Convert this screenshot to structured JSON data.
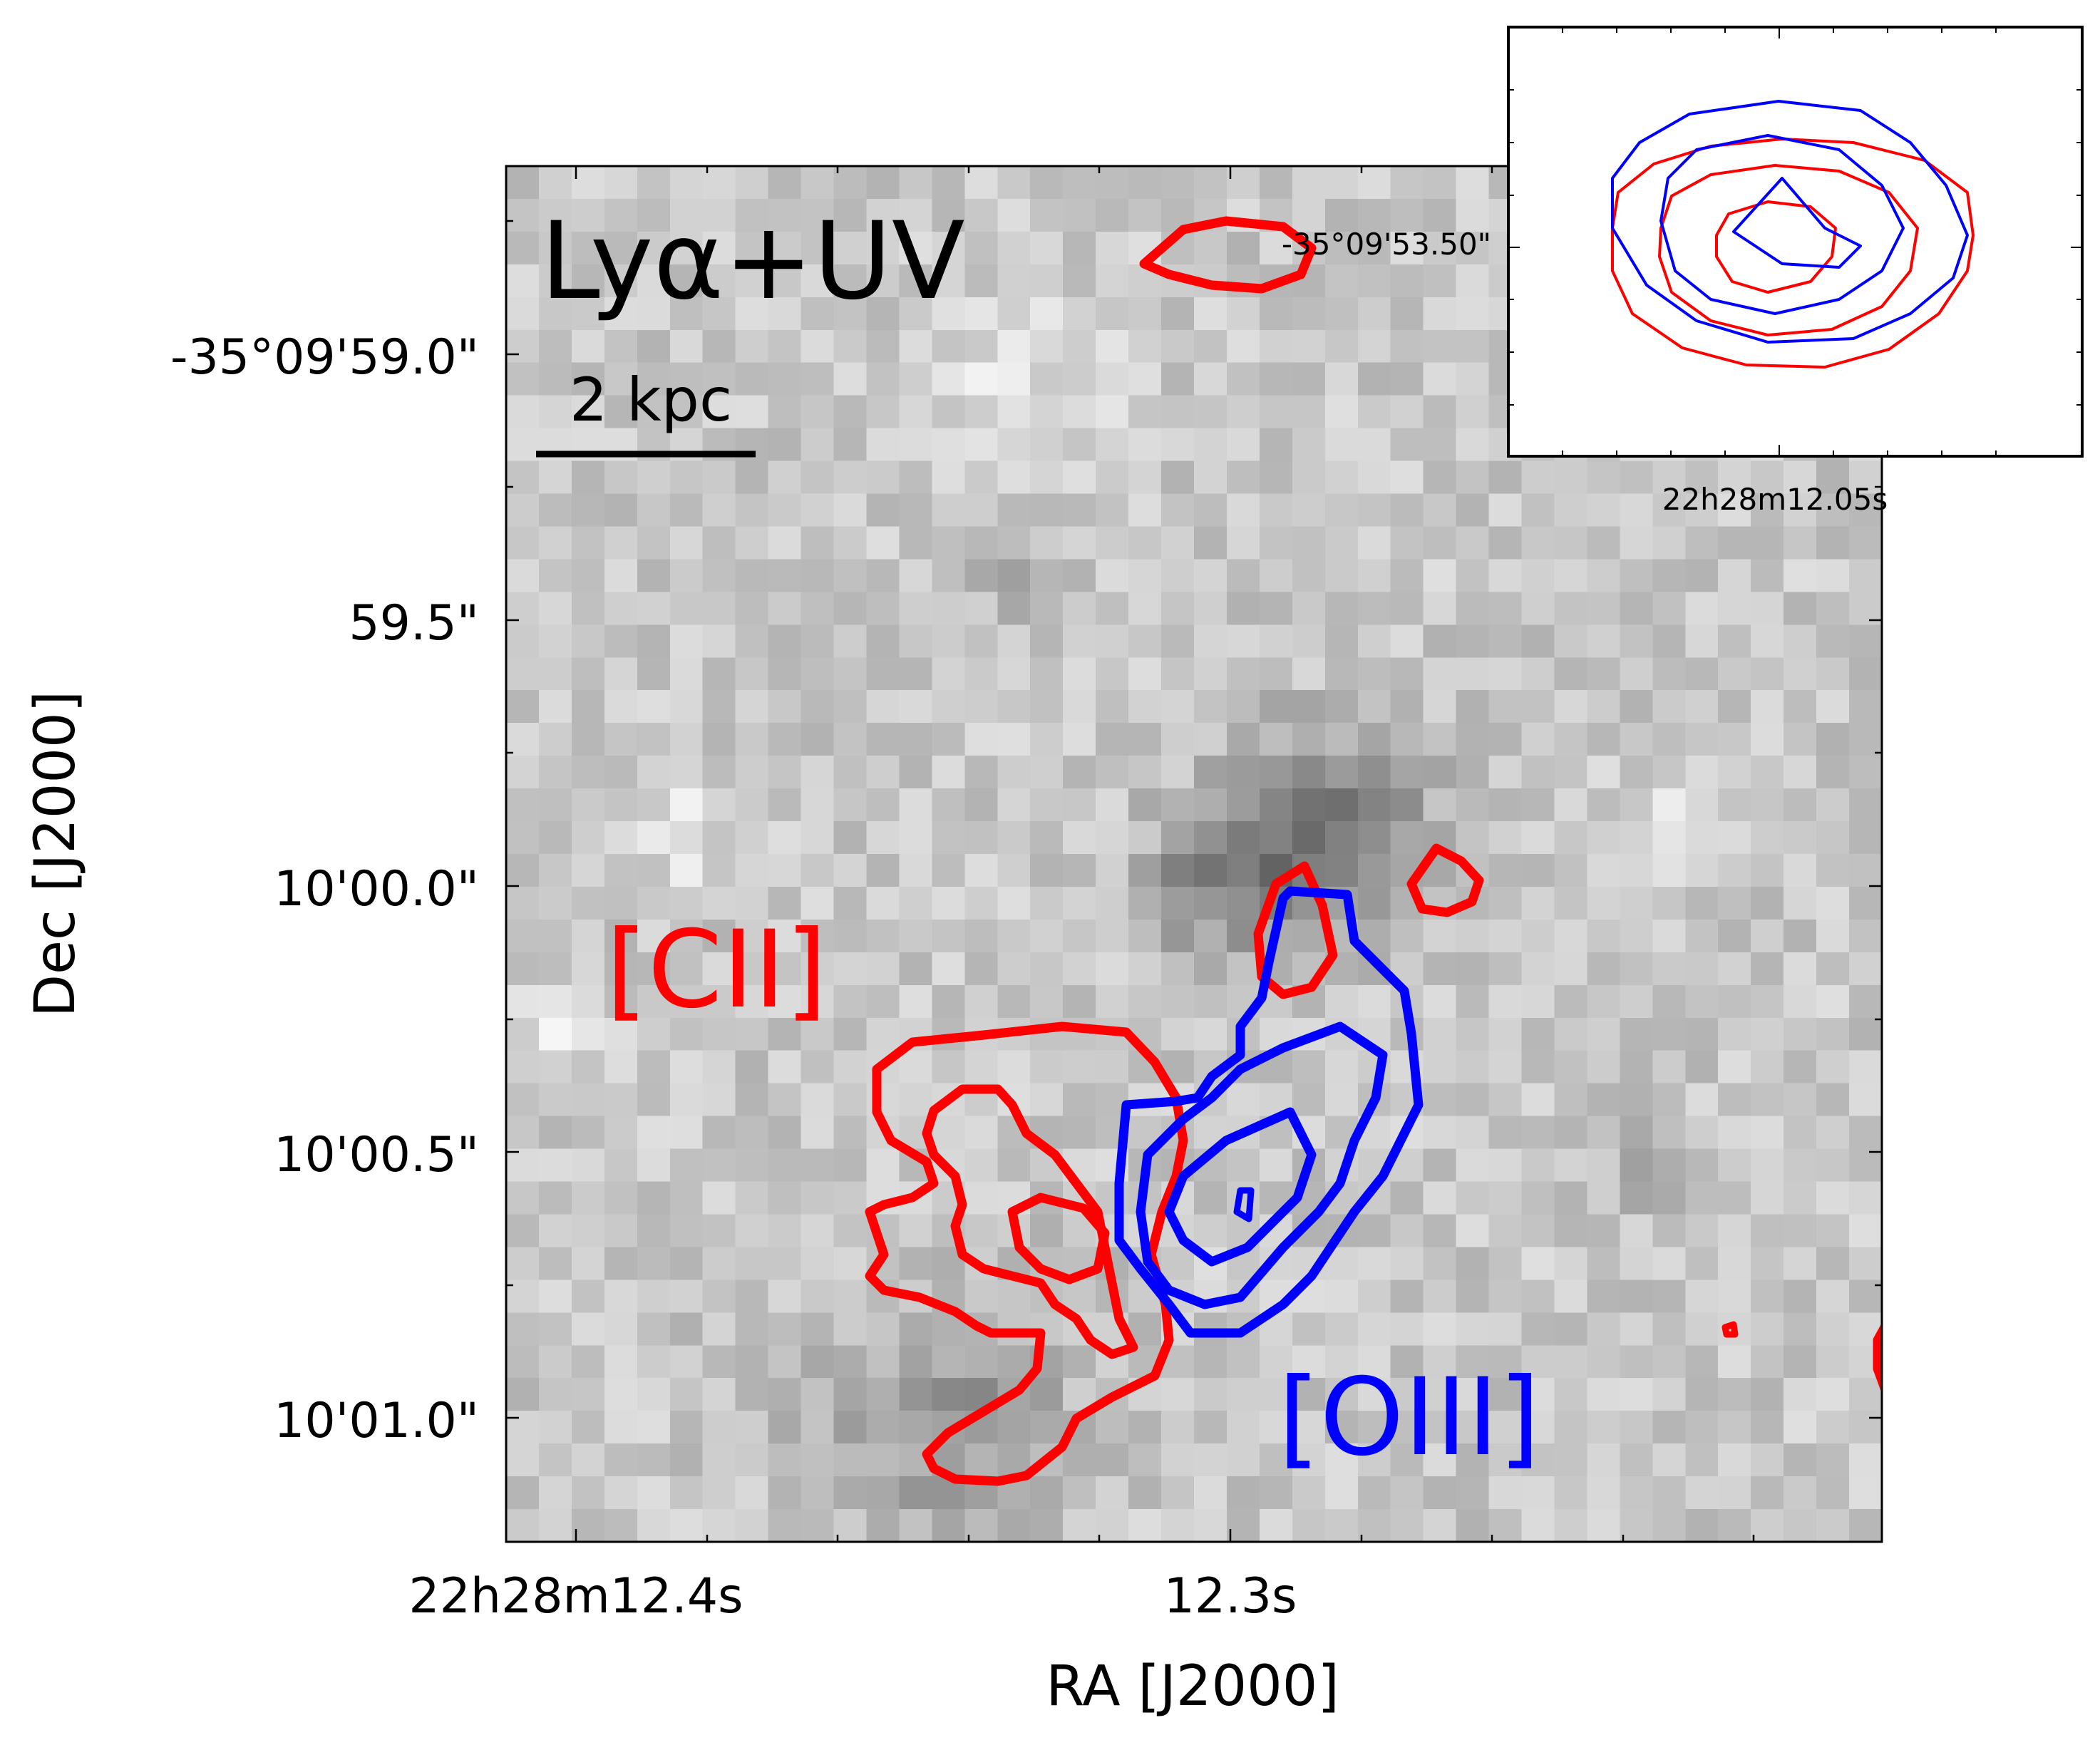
{
  "chart_data": {
    "type": "heatmap",
    "panel_label": "Lyα+UV",
    "scalebar_label": "2 kpc",
    "xlabel": "RA [J2000]",
    "ylabel": "Dec [J2000]",
    "x_ticks": [
      "22h28m12.4s",
      "12.3s"
    ],
    "y_ticks": [
      "-35°09'59.0\"",
      "59.5\"",
      "10'00.0\"",
      "10'00.5\"",
      "10'01.0\""
    ],
    "colormap": "grayscale (Lyα+UV image)",
    "grid": false,
    "series": [
      {
        "name": "[CII]",
        "color": "#ff0000",
        "type": "contour",
        "levels": 3
      },
      {
        "name": "[OIII]",
        "color": "#0000ff",
        "type": "contour",
        "levels": 4
      }
    ],
    "inset": {
      "x_tick": "22h28m12.05s",
      "y_tick": "-35°09'53.50\"",
      "placement": "top-right",
      "series": [
        {
          "name": "[CII]",
          "color": "#ff0000",
          "levels": 3
        },
        {
          "name": "[OIII]",
          "color": "#0000ff",
          "levels": 3
        }
      ]
    }
  }
}
